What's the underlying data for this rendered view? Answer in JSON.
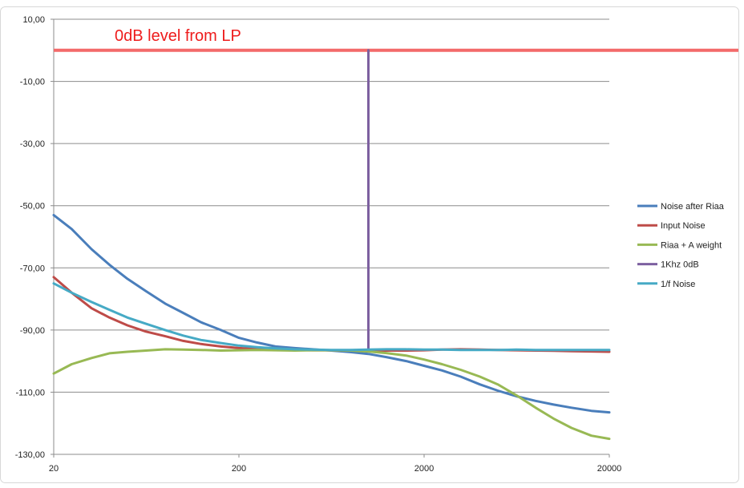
{
  "colors": {
    "background": "#ffffff",
    "frame": "#d8d8d8",
    "gridline": "#8c8c8c",
    "annotation_text": "#ee1c1c",
    "zero_db_line": "#f36a6a"
  },
  "chart_data": {
    "type": "line",
    "title": "",
    "xlabel": "",
    "ylabel": "",
    "x_scale": "log",
    "xlim": [
      20,
      20000
    ],
    "ylim": [
      -130,
      10
    ],
    "x_ticks": [
      20,
      200,
      2000,
      20000
    ],
    "x_tick_labels": [
      "20",
      "200",
      "2000",
      "20000"
    ],
    "y_ticks": [
      10,
      -10,
      -30,
      -50,
      -70,
      -90,
      -110,
      -130
    ],
    "y_tick_labels": [
      "10,00",
      "-10,00",
      "-30,00",
      "-50,00",
      "-70,00",
      "-90,00",
      "-110,00",
      "-130,00"
    ],
    "grid": "horizontal",
    "legend_position": "right",
    "annotation": {
      "text": "0dB level from LP",
      "y": 0
    },
    "series": [
      {
        "name": "Noise after Riaa",
        "color": "#4a7ebb",
        "x": [
          20,
          25,
          32,
          40,
          50,
          63,
          80,
          100,
          125,
          160,
          200,
          250,
          315,
          400,
          500,
          630,
          800,
          1000,
          1250,
          1600,
          2000,
          2500,
          3150,
          4000,
          5000,
          6300,
          8000,
          10000,
          12500,
          16000,
          20000
        ],
        "y": [
          -53,
          -57.5,
          -64,
          -69,
          -73.5,
          -77.5,
          -81.5,
          -84.5,
          -87.5,
          -90,
          -92.5,
          -94,
          -95.3,
          -95.8,
          -96.2,
          -96.6,
          -97.1,
          -97.7,
          -98.7,
          -100,
          -101.5,
          -103,
          -105,
          -107.5,
          -109.5,
          -111.3,
          -112.8,
          -114,
          -115,
          -116,
          -116.5
        ]
      },
      {
        "name": "Input Noise",
        "color": "#be4b48",
        "x": [
          20,
          25,
          32,
          40,
          50,
          63,
          80,
          100,
          125,
          160,
          200,
          250,
          315,
          400,
          500,
          630,
          800,
          1000,
          1250,
          1600,
          2000,
          2500,
          3150,
          4000,
          5000,
          6300,
          8000,
          10000,
          12500,
          16000,
          20000
        ],
        "y": [
          -73,
          -78,
          -83,
          -86,
          -88.5,
          -90.5,
          -92,
          -93.5,
          -94.5,
          -95.3,
          -95.8,
          -96.1,
          -96.3,
          -96.4,
          -96.5,
          -96.5,
          -96.6,
          -96.6,
          -96.6,
          -96.6,
          -96.5,
          -96.3,
          -96.2,
          -96.3,
          -96.4,
          -96.5,
          -96.6,
          -96.7,
          -96.8,
          -96.9,
          -97
        ]
      },
      {
        "name": "Riaa + A weight",
        "color": "#98b954",
        "x": [
          20,
          25,
          32,
          40,
          50,
          63,
          80,
          100,
          125,
          160,
          200,
          250,
          315,
          400,
          500,
          630,
          800,
          1000,
          1250,
          1600,
          2000,
          2500,
          3150,
          4000,
          5000,
          6300,
          8000,
          10000,
          12500,
          16000,
          20000
        ],
        "y": [
          -104,
          -101,
          -99,
          -97.5,
          -97,
          -96.6,
          -96.2,
          -96.3,
          -96.4,
          -96.6,
          -96.5,
          -96.4,
          -96.5,
          -96.6,
          -96.5,
          -96.5,
          -96.6,
          -96.9,
          -97.4,
          -98.2,
          -99.5,
          -101,
          -102.8,
          -105,
          -107.5,
          -111,
          -115,
          -118.5,
          -121.5,
          -124,
          -125
        ]
      },
      {
        "name": "1Khz 0dB",
        "color": "#7d60a0",
        "x": [
          1000,
          1000
        ],
        "y": [
          -96,
          0
        ]
      },
      {
        "name": "1/f Noise",
        "color": "#46aac5",
        "x": [
          20,
          25,
          32,
          40,
          50,
          63,
          80,
          100,
          125,
          160,
          200,
          250,
          315,
          400,
          500,
          630,
          800,
          1000,
          1250,
          1600,
          2000,
          2500,
          3150,
          4000,
          5000,
          6300,
          8000,
          10000,
          12500,
          16000,
          20000
        ],
        "y": [
          -75,
          -78,
          -81,
          -83.5,
          -86,
          -88,
          -90,
          -91.8,
          -93.2,
          -94.2,
          -95,
          -95.5,
          -95.9,
          -96.2,
          -96.3,
          -96.4,
          -96.4,
          -96.3,
          -96.2,
          -96.2,
          -96.3,
          -96.3,
          -96.4,
          -96.4,
          -96.4,
          -96.3,
          -96.4,
          -96.4,
          -96.4,
          -96.4,
          -96.4
        ]
      }
    ]
  }
}
